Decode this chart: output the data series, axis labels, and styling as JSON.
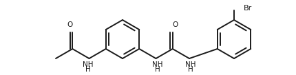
{
  "bg": "#ffffff",
  "lc": "#1a1a1a",
  "lw": 1.4,
  "fs": 7.5,
  "figsize": [
    4.31,
    1.09
  ],
  "dpi": 100,
  "xlim": [
    0,
    431
  ],
  "ylim": [
    0,
    109
  ]
}
